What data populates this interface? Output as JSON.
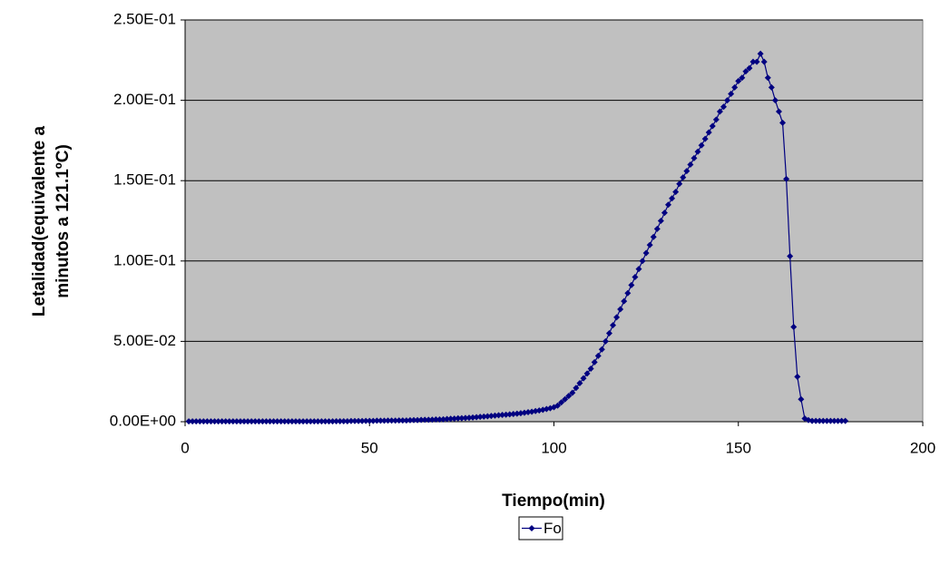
{
  "chart_data": {
    "type": "line",
    "xlabel": "Tiempo(min)",
    "ylabel": [
      "Letalidad(equivalente a",
      "minutos a 121.1ºC)"
    ],
    "xlim": [
      0,
      200
    ],
    "xticks": [
      0,
      50,
      100,
      150,
      200
    ],
    "ylim": [
      0,
      0.25
    ],
    "yticks": [
      {
        "value": 0,
        "label": "0.00E+00"
      },
      {
        "value": 0.05,
        "label": "5.00E-02"
      },
      {
        "value": 0.1,
        "label": "1.00E-01"
      },
      {
        "value": 0.15,
        "label": "1.50E-01"
      },
      {
        "value": 0.2,
        "label": "2.00E-01"
      },
      {
        "value": 0.25,
        "label": "2.50E-01"
      }
    ],
    "grid": true,
    "background": "#c0c0c0",
    "legend": "bottom",
    "x": [
      1,
      2,
      3,
      4,
      5,
      6,
      7,
      8,
      9,
      10,
      11,
      12,
      13,
      14,
      15,
      16,
      17,
      18,
      19,
      20,
      21,
      22,
      23,
      24,
      25,
      26,
      27,
      28,
      29,
      30,
      31,
      32,
      33,
      34,
      35,
      36,
      37,
      38,
      39,
      40,
      41,
      42,
      43,
      44,
      45,
      46,
      47,
      48,
      49,
      50,
      51,
      52,
      53,
      54,
      55,
      56,
      57,
      58,
      59,
      60,
      61,
      62,
      63,
      64,
      65,
      66,
      67,
      68,
      69,
      70,
      71,
      72,
      73,
      74,
      75,
      76,
      77,
      78,
      79,
      80,
      81,
      82,
      83,
      84,
      85,
      86,
      87,
      88,
      89,
      90,
      91,
      92,
      93,
      94,
      95,
      96,
      97,
      98,
      99,
      100,
      101,
      102,
      103,
      104,
      105,
      106,
      107,
      108,
      109,
      110,
      111,
      112,
      113,
      114,
      115,
      116,
      117,
      118,
      119,
      120,
      121,
      122,
      123,
      124,
      125,
      126,
      127,
      128,
      129,
      130,
      131,
      132,
      133,
      134,
      135,
      136,
      137,
      138,
      139,
      140,
      141,
      142,
      143,
      144,
      145,
      146,
      147,
      148,
      149,
      150,
      151,
      152,
      153,
      154,
      155,
      156,
      157,
      158,
      159,
      160,
      161,
      162,
      163,
      164,
      165,
      166,
      167,
      168,
      169,
      170,
      171,
      172,
      173,
      174,
      175,
      176,
      177,
      178,
      179
    ],
    "series": [
      {
        "name": "Fo",
        "color": "#000080",
        "values": [
          0.0002,
          0.0002,
          0.0002,
          0.0002,
          0.0002,
          0.0002,
          0.0002,
          0.0002,
          0.0002,
          0.0002,
          0.0002,
          0.0002,
          0.0002,
          0.0002,
          0.0002,
          0.0002,
          0.0002,
          0.0002,
          0.0002,
          0.0002,
          0.0002,
          0.0002,
          0.0002,
          0.0002,
          0.0002,
          0.0002,
          0.0002,
          0.0002,
          0.0002,
          0.0002,
          0.0002,
          0.0002,
          0.0002,
          0.0002,
          0.0002,
          0.0002,
          0.0002,
          0.0002,
          0.0002,
          0.0002,
          0.0003,
          0.0003,
          0.0003,
          0.0003,
          0.0004,
          0.0004,
          0.0004,
          0.0004,
          0.0005,
          0.0005,
          0.0005,
          0.0006,
          0.0006,
          0.0006,
          0.0007,
          0.0007,
          0.0007,
          0.0008,
          0.0008,
          0.0008,
          0.0009,
          0.001,
          0.001,
          0.0011,
          0.0012,
          0.0012,
          0.0013,
          0.0014,
          0.0014,
          0.0015,
          0.0017,
          0.0018,
          0.0019,
          0.0021,
          0.0022,
          0.0023,
          0.0025,
          0.0026,
          0.0028,
          0.003,
          0.0032,
          0.0034,
          0.0036,
          0.0038,
          0.004,
          0.0042,
          0.0044,
          0.0046,
          0.0048,
          0.005,
          0.0053,
          0.0056,
          0.0059,
          0.0062,
          0.0066,
          0.007,
          0.0074,
          0.0079,
          0.0084,
          0.009,
          0.01,
          0.012,
          0.014,
          0.016,
          0.018,
          0.021,
          0.024,
          0.027,
          0.03,
          0.033,
          0.037,
          0.041,
          0.045,
          0.05,
          0.055,
          0.06,
          0.065,
          0.07,
          0.075,
          0.08,
          0.085,
          0.09,
          0.095,
          0.1,
          0.105,
          0.11,
          0.115,
          0.12,
          0.125,
          0.13,
          0.135,
          0.139,
          0.143,
          0.148,
          0.152,
          0.156,
          0.16,
          0.164,
          0.168,
          0.172,
          0.176,
          0.18,
          0.184,
          0.188,
          0.193,
          0.196,
          0.2,
          0.204,
          0.208,
          0.212,
          0.214,
          0.218,
          0.22,
          0.224,
          0.224,
          0.229,
          0.224,
          0.214,
          0.208,
          0.2,
          0.193,
          0.186,
          0.151,
          0.103,
          0.059,
          0.028,
          0.014,
          0.002,
          0.001,
          0.0005,
          0.0005,
          0.0005,
          0.0005,
          0.0005,
          0.0005,
          0.0005,
          0.0005,
          0.0005,
          0.0005
        ]
      }
    ]
  }
}
